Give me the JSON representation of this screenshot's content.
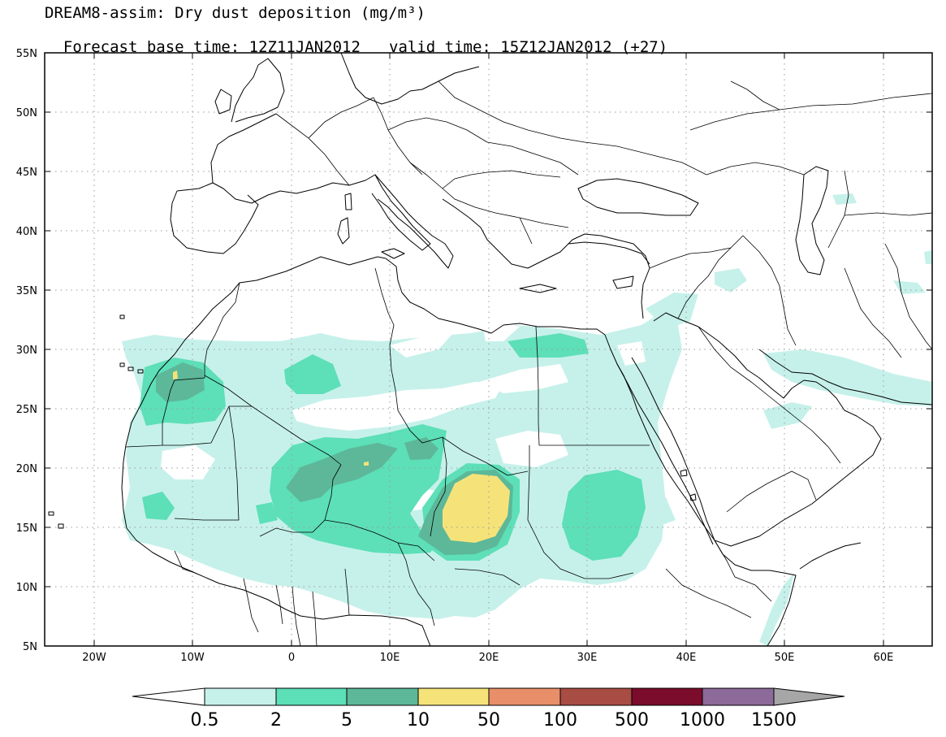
{
  "title": {
    "line1": "DREAM8-assim: Dry dust deposition (mg/m³)",
    "line2_base": "Forecast base time: 12Z11JAN2012",
    "line2_valid": "valid time: 15Z12JAN2012 (+27)"
  },
  "map": {
    "lon_range": [
      -25,
      65
    ],
    "lat_range": [
      5,
      55
    ],
    "lat_labels": [
      "55N",
      "50N",
      "45N",
      "40N",
      "35N",
      "30N",
      "25N",
      "20N",
      "15N",
      "10N",
      "5N"
    ],
    "lon_labels": [
      "20W",
      "10W",
      "0",
      "10E",
      "20E",
      "30E",
      "40E",
      "50E",
      "60E"
    ],
    "deposition_fields": [
      {
        "level": "0.5-2",
        "region": "Sahara belt 15N-30N, 15W-35E"
      },
      {
        "level": "2-5",
        "region": "Morocco, Libya, Niger, Chad, Sudan"
      },
      {
        "level": "5-10",
        "region": "Mali/Niger, western Chad"
      },
      {
        "level": "10-50",
        "region": "Chad near 17N 19E"
      }
    ]
  },
  "colorbar": {
    "labels": [
      "0.5",
      "2",
      "5",
      "10",
      "50",
      "100",
      "500",
      "1000",
      "1500"
    ],
    "colors": [
      "#ffffff",
      "#c6f1ea",
      "#5ddfb8",
      "#5cb898",
      "#f5e37a",
      "#e88f6a",
      "#a84d43",
      "#7b0c2c",
      "#8c6a9a",
      "#a6a6a6"
    ]
  }
}
